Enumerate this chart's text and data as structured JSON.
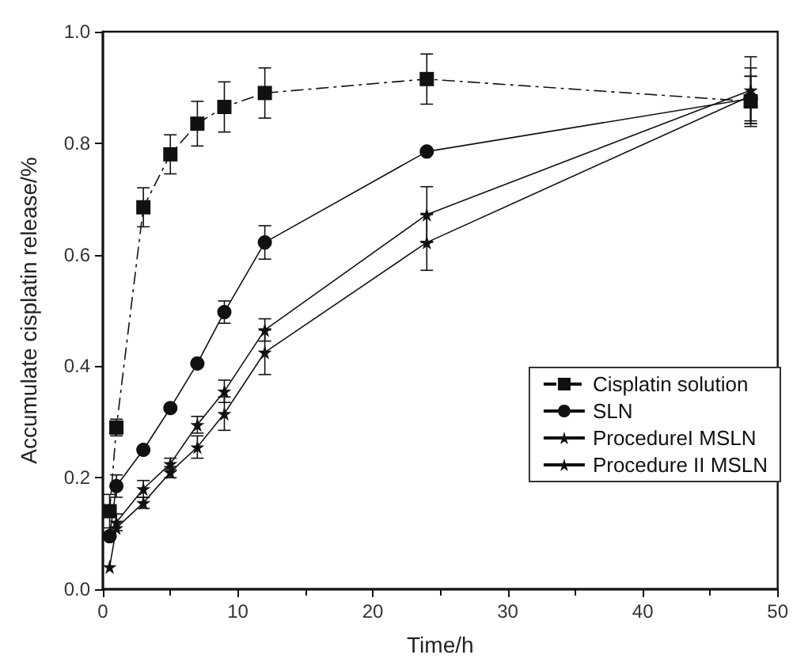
{
  "chart_data": {
    "type": "line",
    "xlabel": "Time/h",
    "ylabel": "Accumulate cisplatin release/%",
    "x": [
      0.5,
      1,
      3,
      5,
      7,
      9,
      12,
      24,
      48
    ],
    "series": [
      {
        "name": "Cisplatin solution",
        "color": "#111111",
        "marker": "square",
        "line_style": "dashed",
        "values": [
          0.14,
          0.29,
          0.685,
          0.78,
          0.835,
          0.865,
          0.89,
          0.915,
          0.875
        ],
        "errors": [
          0.03,
          0.015,
          0.035,
          0.035,
          0.04,
          0.045,
          0.045,
          0.045,
          0.045
        ]
      },
      {
        "name": "SLN",
        "color": "#111111",
        "marker": "circle",
        "line_style": "solid",
        "values": [
          0.095,
          0.185,
          0.25,
          0.325,
          0.405,
          0.497,
          0.622,
          0.785,
          0.88
        ],
        "errors": [
          null,
          0.02,
          null,
          null,
          null,
          0.02,
          0.03,
          null,
          0.04
        ]
      },
      {
        "name": "ProcedureI MSLN",
        "color": "#111111",
        "marker": "star",
        "line_style": "solid",
        "values": [
          0.1,
          0.12,
          0.18,
          0.225,
          0.295,
          0.355,
          0.465,
          0.672,
          0.895
        ],
        "errors": [
          null,
          0.015,
          0.015,
          0.01,
          0.015,
          0.02,
          0.02,
          0.05,
          0.06
        ]
      },
      {
        "name": "Procedure II MSLN",
        "color": "#111111",
        "marker": "star",
        "line_style": "solid",
        "values": [
          0.04,
          0.11,
          0.155,
          0.21,
          0.255,
          0.315,
          0.425,
          0.622,
          0.885
        ],
        "errors": [
          null,
          null,
          0.01,
          0.01,
          0.02,
          0.03,
          0.04,
          0.05,
          0.05
        ]
      }
    ],
    "xlim": [
      0,
      50
    ],
    "xticks": [
      0,
      10,
      20,
      30,
      40,
      50
    ],
    "ylim": [
      0,
      1
    ],
    "yticks": [
      {
        "value": 0,
        "label": "0.0"
      },
      {
        "value": 0.2,
        "label": "0.2"
      },
      {
        "value": 0.4,
        "label": "0.4"
      },
      {
        "value": 0.6,
        "label": "0.6"
      },
      {
        "value": 0.8,
        "label": "0.8"
      },
      {
        "value": 1,
        "label": "1.0"
      }
    ],
    "grid": false,
    "legend": "right"
  }
}
